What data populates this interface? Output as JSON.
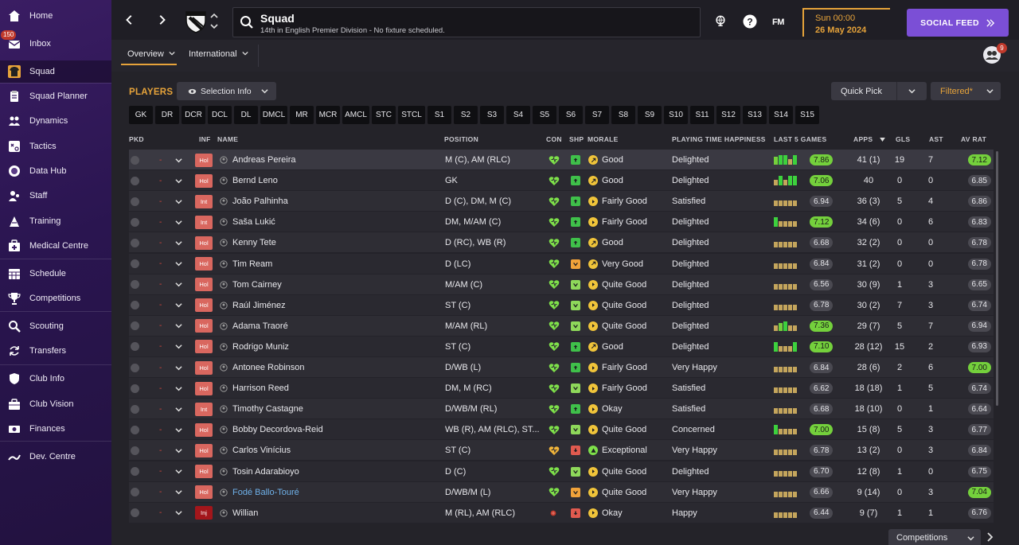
{
  "sidebar": {
    "items": [
      {
        "label": "Home",
        "icon": "home-icon"
      },
      {
        "label": "Inbox",
        "icon": "inbox-icon",
        "badge": "150"
      },
      {
        "label": "Squad",
        "icon": "shirt-icon"
      },
      {
        "label": "Squad Planner",
        "icon": "clipboard-icon"
      },
      {
        "label": "Dynamics",
        "icon": "people-icon"
      },
      {
        "label": "Tactics",
        "icon": "tactics-icon"
      },
      {
        "label": "Data Hub",
        "icon": "data-hub-icon"
      },
      {
        "label": "Staff",
        "icon": "staff-icon"
      },
      {
        "label": "Training",
        "icon": "training-icon"
      },
      {
        "label": "Medical Centre",
        "icon": "medical-icon"
      },
      {
        "label": "Schedule",
        "icon": "calendar-icon"
      },
      {
        "label": "Competitions",
        "icon": "trophy-icon"
      },
      {
        "label": "Scouting",
        "icon": "magnifier-icon"
      },
      {
        "label": "Transfers",
        "icon": "transfer-icon"
      },
      {
        "label": "Club Info",
        "icon": "shield-icon"
      },
      {
        "label": "Club Vision",
        "icon": "briefcase-icon"
      },
      {
        "label": "Finances",
        "icon": "money-icon"
      },
      {
        "label": "Dev. Centre",
        "icon": "dev-centre-icon"
      }
    ]
  },
  "header": {
    "title": "Squad",
    "subtitle": "14th in English Premier Division - No fixture scheduled.",
    "fm_logo": "FM",
    "day_time": "Sun 00:00",
    "date": "26 May 2024",
    "social_feed": "SOCIAL FEED",
    "manager_badge": "9",
    "tabs": [
      "Overview",
      "International"
    ]
  },
  "content": {
    "players_title": "PLAYERS",
    "selection_info": "Selection Info",
    "quick_pick": "Quick Pick",
    "filtered": "Filtered*",
    "competitions": "Competitions",
    "position_filters": [
      "GK",
      "DR",
      "DCR",
      "DCL",
      "DL",
      "DMCL",
      "MR",
      "MCR",
      "AMCL",
      "STC",
      "STCL",
      "S1",
      "S2",
      "S3",
      "S4",
      "S5",
      "S6",
      "S7",
      "S8",
      "S9",
      "S10",
      "S11",
      "S12",
      "S13",
      "S14",
      "S15"
    ],
    "columns": {
      "pkd": "PKD",
      "inf": "INF",
      "name": "NAME",
      "position": "POSITION",
      "con": "CON",
      "shp": "SHP",
      "morale": "MORALE",
      "pth": "PLAYING TIME HAPPINESS",
      "last5": "LAST 5 GAMES",
      "apps": "APPS",
      "gls": "GLS",
      "ast": "AST",
      "avrat": "AV RAT"
    },
    "colors": {
      "accent": "#e6a33a",
      "rating_green": "#74d03c",
      "social_feed": "#7b4fd6"
    },
    "players": [
      {
        "name": "Andreas Pereira",
        "inf": "Hol",
        "position": "M (C), AM (RLC)",
        "con": "heart",
        "shp": "up",
        "morale": "Good",
        "pth": "Delighted",
        "last5_rating": "7.86",
        "last5_green": true,
        "bars": [
          2,
          3,
          3,
          1,
          3
        ],
        "apps": "41 (1)",
        "gls": "19",
        "ast": "7",
        "avrat": "7.12",
        "avrat_green": true,
        "link": false
      },
      {
        "name": "Bernd Leno",
        "inf": "Hol",
        "position": "GK",
        "con": "heart",
        "shp": "up",
        "morale": "Good",
        "pth": "Delighted",
        "last5_rating": "7.06",
        "last5_green": true,
        "bars": [
          1,
          3,
          1,
          3,
          3
        ],
        "apps": "40",
        "gls": "0",
        "ast": "0",
        "avrat": "6.85",
        "avrat_green": false,
        "link": false
      },
      {
        "name": "João Palhinha",
        "inf": "Int",
        "position": "D (C), DM, M (C)",
        "con": "heart",
        "shp": "up",
        "morale": "Fairly Good",
        "pth": "Satisfied",
        "last5_rating": "6.94",
        "last5_green": false,
        "bars": [
          1,
          1,
          1,
          1,
          1
        ],
        "apps": "36 (3)",
        "gls": "5",
        "ast": "4",
        "avrat": "6.86",
        "avrat_green": false,
        "link": false
      },
      {
        "name": "Saša Lukić",
        "inf": "Int",
        "position": "DM, M/AM (C)",
        "con": "heart",
        "shp": "up",
        "morale": "Fairly Good",
        "pth": "Delighted",
        "last5_rating": "7.12",
        "last5_green": true,
        "bars": [
          3,
          1,
          1,
          1,
          1
        ],
        "apps": "34 (6)",
        "gls": "0",
        "ast": "6",
        "avrat": "6.83",
        "avrat_green": false,
        "link": false
      },
      {
        "name": "Kenny Tete",
        "inf": "Hol",
        "position": "D (RC), WB (R)",
        "con": "heart",
        "shp": "up",
        "morale": "Good",
        "pth": "Delighted",
        "last5_rating": "6.68",
        "last5_green": false,
        "bars": [
          1,
          1,
          1,
          1,
          1
        ],
        "apps": "32 (2)",
        "gls": "0",
        "ast": "0",
        "avrat": "6.78",
        "avrat_green": false,
        "link": false
      },
      {
        "name": "Tim Ream",
        "inf": "Hol",
        "position": "D (LC)",
        "con": "heart",
        "shp": "neutral",
        "morale": "Very Good",
        "pth": "Delighted",
        "last5_rating": "6.84",
        "last5_green": false,
        "bars": [
          1,
          1,
          1,
          1,
          1
        ],
        "apps": "31 (2)",
        "gls": "0",
        "ast": "0",
        "avrat": "6.78",
        "avrat_green": false,
        "link": false
      },
      {
        "name": "Tom Cairney",
        "inf": "Hol",
        "position": "M/AM (C)",
        "con": "heart",
        "shp": "down",
        "morale": "Quite Good",
        "pth": "Delighted",
        "last5_rating": "6.56",
        "last5_green": false,
        "bars": [
          1,
          1,
          1,
          1,
          1
        ],
        "apps": "30 (9)",
        "gls": "1",
        "ast": "3",
        "avrat": "6.65",
        "avrat_green": false,
        "link": false
      },
      {
        "name": "Raúl Jiménez",
        "inf": "Hol",
        "position": "ST (C)",
        "con": "heart",
        "shp": "down",
        "morale": "Quite Good",
        "pth": "Delighted",
        "last5_rating": "6.78",
        "last5_green": false,
        "bars": [
          1,
          1,
          1,
          1,
          1
        ],
        "apps": "30 (2)",
        "gls": "7",
        "ast": "3",
        "avrat": "6.74",
        "avrat_green": false,
        "link": false
      },
      {
        "name": "Adama Traoré",
        "inf": "Hol",
        "position": "M/AM (RL)",
        "con": "heart",
        "shp": "down",
        "morale": "Quite Good",
        "pth": "Delighted",
        "last5_rating": "7.36",
        "last5_green": true,
        "bars": [
          1,
          2,
          3,
          1,
          1
        ],
        "apps": "29 (7)",
        "gls": "5",
        "ast": "7",
        "avrat": "6.94",
        "avrat_green": false,
        "link": false
      },
      {
        "name": "Rodrigo Muniz",
        "inf": "Hol",
        "position": "ST (C)",
        "con": "heart",
        "shp": "up",
        "morale": "Good",
        "pth": "Delighted",
        "last5_rating": "7.10",
        "last5_green": true,
        "bars": [
          3,
          1,
          1,
          1,
          3
        ],
        "apps": "28 (12)",
        "gls": "15",
        "ast": "2",
        "avrat": "6.93",
        "avrat_green": false,
        "link": false
      },
      {
        "name": "Antonee Robinson",
        "inf": "Hol",
        "position": "D/WB (L)",
        "con": "heart",
        "shp": "up",
        "morale": "Fairly Good",
        "pth": "Very Happy",
        "last5_rating": "6.84",
        "last5_green": false,
        "bars": [
          1,
          1,
          1,
          1,
          1
        ],
        "apps": "28 (6)",
        "gls": "2",
        "ast": "6",
        "avrat": "7.00",
        "avrat_green": true,
        "link": false
      },
      {
        "name": "Harrison Reed",
        "inf": "Hol",
        "position": "DM, M (RC)",
        "con": "heart",
        "shp": "down",
        "morale": "Fairly Good",
        "pth": "Satisfied",
        "last5_rating": "6.62",
        "last5_green": false,
        "bars": [
          1,
          1,
          1,
          1,
          1
        ],
        "apps": "18 (18)",
        "gls": "1",
        "ast": "5",
        "avrat": "6.74",
        "avrat_green": false,
        "link": false
      },
      {
        "name": "Timothy Castagne",
        "inf": "Int",
        "position": "D/WB/M (RL)",
        "con": "heart",
        "shp": "up",
        "morale": "Okay",
        "pth": "Satisfied",
        "last5_rating": "6.68",
        "last5_green": false,
        "bars": [
          1,
          1,
          1,
          1,
          1
        ],
        "apps": "18 (10)",
        "gls": "0",
        "ast": "1",
        "avrat": "6.64",
        "avrat_green": false,
        "link": false
      },
      {
        "name": "Bobby Decordova-Reid",
        "inf": "Hol",
        "position": "WB (R), AM (RLC), ST...",
        "con": "heart",
        "shp": "down",
        "morale": "Quite Good",
        "pth": "Concerned",
        "last5_rating": "7.00",
        "last5_green": true,
        "bars": [
          3,
          1,
          1,
          1,
          1
        ],
        "apps": "15 (8)",
        "gls": "5",
        "ast": "3",
        "avrat": "6.77",
        "avrat_green": false,
        "link": false
      },
      {
        "name": "Carlos Vinícius",
        "inf": "Hol",
        "position": "ST (C)",
        "con": "yellow",
        "shp": "red",
        "morale": "Exceptional",
        "pth": "Very Happy",
        "last5_rating": "6.78",
        "last5_green": false,
        "bars": [
          1,
          1,
          1,
          1,
          1
        ],
        "apps": "13 (2)",
        "gls": "0",
        "ast": "3",
        "avrat": "6.84",
        "avrat_green": false,
        "link": false
      },
      {
        "name": "Tosin Adarabioyo",
        "inf": "Hol",
        "position": "D (C)",
        "con": "heart",
        "shp": "down",
        "morale": "Quite Good",
        "pth": "Delighted",
        "last5_rating": "6.70",
        "last5_green": false,
        "bars": [
          1,
          1,
          1,
          1,
          1
        ],
        "apps": "12 (8)",
        "gls": "1",
        "ast": "0",
        "avrat": "6.75",
        "avrat_green": false,
        "link": false
      },
      {
        "name": "Fodé Ballo-Touré",
        "inf": "Hol",
        "position": "D/WB/M (L)",
        "con": "heart",
        "shp": "neutral",
        "morale": "Quite Good",
        "pth": "Very Happy",
        "last5_rating": "6.66",
        "last5_green": false,
        "bars": [
          1,
          1,
          1,
          1,
          1
        ],
        "apps": "9 (14)",
        "gls": "0",
        "ast": "3",
        "avrat": "7.04",
        "avrat_green": true,
        "link": true
      },
      {
        "name": "Willian",
        "inf": "Inj",
        "position": "M (RL), AM (RLC)",
        "con": "injury",
        "shp": "red",
        "morale": "Okay",
        "pth": "Happy",
        "last5_rating": "6.44",
        "last5_green": false,
        "bars": [
          1,
          1,
          1,
          1,
          1
        ],
        "apps": "9 (7)",
        "gls": "1",
        "ast": "1",
        "avrat": "6.76",
        "avrat_green": false,
        "link": false
      }
    ]
  }
}
